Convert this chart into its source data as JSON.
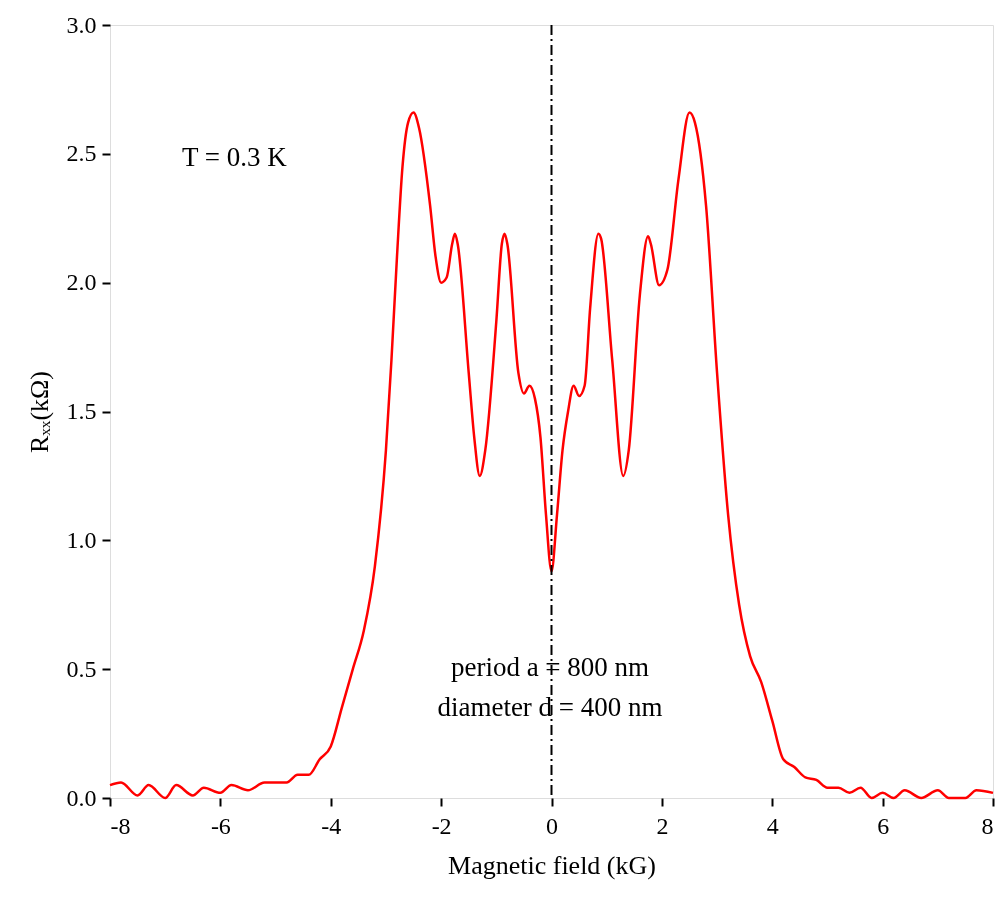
{
  "chart_data": {
    "type": "line",
    "xlabel": "Magnetic field (kG)",
    "ylabel": "Rₓₓ(kΩ)",
    "x": [
      -8,
      -7.8,
      -7.5,
      -7.3,
      -7.0,
      -6.8,
      -6.5,
      -6.3,
      -6.0,
      -5.8,
      -5.5,
      -5.2,
      -5.0,
      -4.8,
      -4.6,
      -4.4,
      -4.2,
      -4.0,
      -3.8,
      -3.6,
      -3.4,
      -3.2,
      -3.0,
      -2.9,
      -2.8,
      -2.7,
      -2.6,
      -2.5,
      -2.4,
      -2.2,
      -2.1,
      -2.0,
      -1.9,
      -1.8,
      -1.75,
      -1.7,
      -1.5,
      -1.4,
      -1.3,
      -1.2,
      -1.0,
      -0.9,
      -0.85,
      -0.8,
      -0.6,
      -0.5,
      -0.4,
      -0.3,
      -0.2,
      -0.1,
      0,
      0.1,
      0.2,
      0.3,
      0.4,
      0.5,
      0.6,
      0.7,
      0.85,
      0.9,
      1.1,
      1.3,
      1.4,
      1.6,
      1.75,
      1.8,
      1.95,
      2.1,
      2.3,
      2.5,
      2.6,
      2.8,
      3.0,
      3.2,
      3.4,
      3.6,
      3.8,
      4.0,
      4.2,
      4.4,
      4.6,
      4.8,
      5.0,
      5.2,
      5.4,
      5.6,
      5.8,
      6.0,
      6.2,
      6.4,
      6.7,
      7.0,
      7.2,
      7.5,
      7.7,
      8.0
    ],
    "series": [
      {
        "color": "#ff0000",
        "values": [
          0.05,
          0.06,
          0.01,
          0.05,
          0.0,
          0.05,
          0.01,
          0.04,
          0.02,
          0.05,
          0.03,
          0.06,
          0.06,
          0.06,
          0.09,
          0.09,
          0.15,
          0.2,
          0.35,
          0.5,
          0.65,
          0.9,
          1.35,
          1.7,
          2.1,
          2.45,
          2.62,
          2.66,
          2.6,
          2.3,
          2.1,
          2.0,
          2.02,
          2.15,
          2.19,
          2.15,
          1.65,
          1.4,
          1.25,
          1.35,
          1.85,
          2.15,
          2.19,
          2.15,
          1.65,
          1.57,
          1.6,
          1.55,
          1.4,
          1.1,
          0.88,
          1.1,
          1.35,
          1.5,
          1.6,
          1.56,
          1.6,
          1.9,
          2.19,
          2.17,
          1.7,
          1.25,
          1.35,
          1.95,
          2.18,
          2.15,
          1.99,
          2.05,
          2.4,
          2.66,
          2.62,
          2.3,
          1.65,
          1.1,
          0.75,
          0.55,
          0.45,
          0.3,
          0.15,
          0.12,
          0.08,
          0.07,
          0.04,
          0.04,
          0.02,
          0.04,
          0.0,
          0.02,
          0.0,
          0.03,
          0.0,
          0.03,
          0.0,
          0.0,
          0.03,
          0.02
        ]
      }
    ],
    "xlim": [
      -8,
      8
    ],
    "xticks": [
      -8,
      -6,
      -4,
      -2,
      0,
      2,
      4,
      6,
      8
    ],
    "ylim": [
      0,
      3.0
    ],
    "yticks": [
      {
        "value": 0,
        "label": "0.0"
      },
      {
        "value": 0.5,
        "label": "0.5"
      },
      {
        "value": 1,
        "label": "1.0"
      },
      {
        "value": 1.5,
        "label": "1.5"
      },
      {
        "value": 2,
        "label": "2.0"
      },
      {
        "value": 2.5,
        "label": "2.5"
      },
      {
        "value": 3,
        "label": "3.0"
      }
    ],
    "ref_lines": [
      {
        "axis": "x",
        "value": 0,
        "color": "#000000",
        "line_style": "dashdot"
      }
    ],
    "annotations": [
      "T = 0.3 K",
      "period a = 800 nm",
      "diameter d = 400 nm"
    ],
    "grid": false,
    "marker": "none",
    "line_style": "solid"
  }
}
